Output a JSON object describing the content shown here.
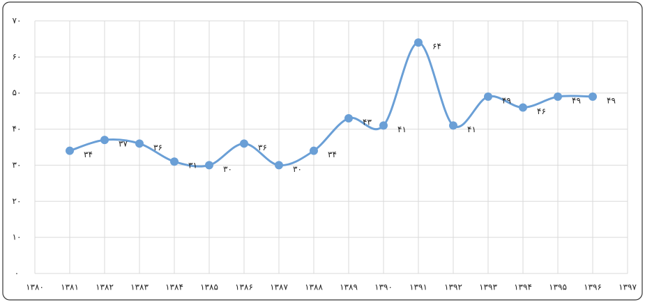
{
  "chart_data": {
    "type": "line",
    "categories": [
      "۱۳۸۰",
      "۱۳۸۱",
      "۱۳۸۲",
      "۱۳۸۳",
      "۱۳۸۴",
      "۱۳۸۵",
      "۱۳۸۶",
      "۱۳۸۷",
      "۱۳۸۸",
      "۱۳۸۹",
      "۱۳۹۰",
      "۱۳۹۱",
      "۱۳۹۲",
      "۱۳۹۳",
      "۱۳۹۴",
      "۱۳۹۵",
      "۱۳۹۶",
      "۱۳۹۷"
    ],
    "series": [
      {
        "color": "#6a9fd6",
        "values": [
          null,
          34,
          37,
          36,
          31,
          30,
          36,
          30,
          34,
          43,
          41,
          64,
          41,
          49,
          46,
          49,
          49,
          null
        ],
        "value_labels": [
          null,
          "۳۴",
          "۳۷",
          "۳۶",
          "۳۱",
          "۳۰",
          "۳۶",
          "۳۰",
          "۳۴",
          "۴۳",
          "۴۱",
          "۶۴",
          "۴۱",
          "۴۹",
          "۴۶",
          "۴۹",
          "۴۹",
          null
        ]
      }
    ],
    "ylim": [
      0,
      70
    ],
    "yticks": [
      {
        "value": 0,
        "label": "۰"
      },
      {
        "value": 10,
        "label": "۱۰"
      },
      {
        "value": 20,
        "label": "۲۰"
      },
      {
        "value": 30,
        "label": "۳۰"
      },
      {
        "value": 40,
        "label": "۴۰"
      },
      {
        "value": 50,
        "label": "۵۰"
      },
      {
        "value": 60,
        "label": "۶۰"
      },
      {
        "value": 70,
        "label": "۷۰"
      }
    ],
    "grid": true
  }
}
